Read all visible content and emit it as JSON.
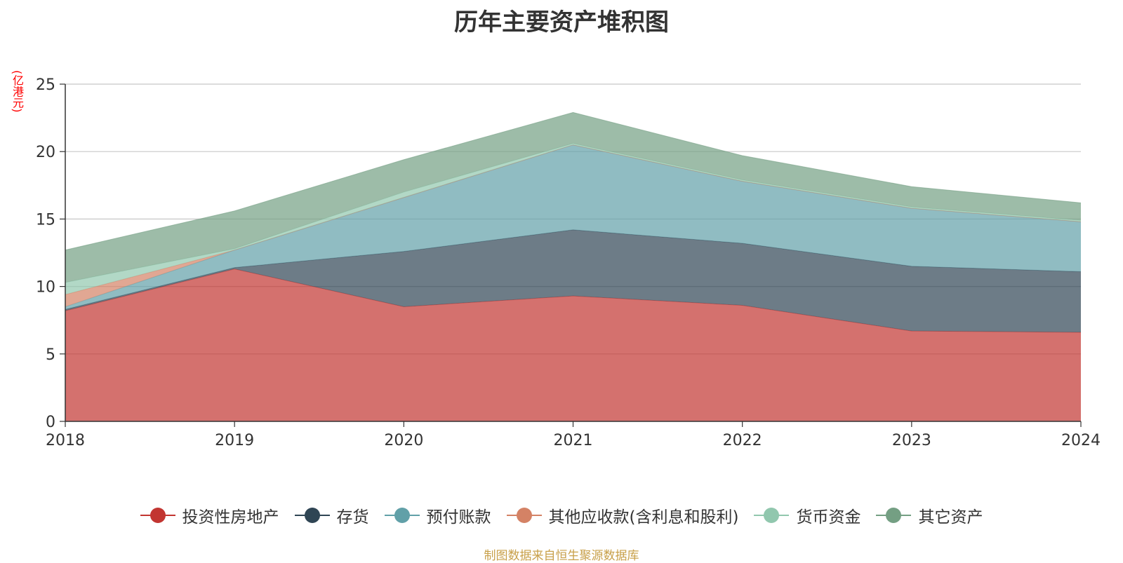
{
  "title": "历年主要资产堆积图",
  "unit_label": "(亿港元)",
  "source_note": "制图数据来自恒生聚源数据库",
  "chart_data": {
    "type": "area",
    "stacked": true,
    "title": "历年主要资产堆积图",
    "ylabel": "(亿港元)",
    "x": [
      "2018",
      "2019",
      "2020",
      "2021",
      "2022",
      "2023",
      "2024"
    ],
    "ylim": [
      0,
      25
    ],
    "yticks": [
      0,
      5,
      10,
      15,
      20,
      25
    ],
    "grid": true,
    "legend_position": "bottom",
    "series": [
      {
        "name": "投资性房地产",
        "color": "#c23531",
        "values": [
          8.2,
          11.3,
          8.5,
          9.3,
          8.6,
          6.7,
          6.6
        ]
      },
      {
        "name": "存货",
        "color": "#2f4554",
        "values": [
          0.1,
          0.1,
          4.1,
          4.9,
          4.6,
          4.8,
          4.5
        ]
      },
      {
        "name": "预付账款",
        "color": "#61a0a8",
        "values": [
          0.2,
          1.3,
          4.0,
          6.3,
          4.6,
          4.3,
          3.7
        ]
      },
      {
        "name": "其他应收款(含利息和股利)",
        "color": "#d48265",
        "values": [
          0.9,
          0.0,
          0.0,
          0.0,
          0.0,
          0.0,
          0.0
        ]
      },
      {
        "name": "货币资金",
        "color": "#91c7ae",
        "values": [
          0.9,
          0.1,
          0.4,
          0.1,
          0.1,
          0.1,
          0.1
        ]
      },
      {
        "name": "其它资产",
        "color": "#749f83",
        "values": [
          2.4,
          2.8,
          2.4,
          2.3,
          1.8,
          1.5,
          1.3
        ]
      }
    ]
  }
}
